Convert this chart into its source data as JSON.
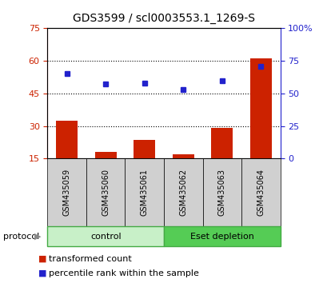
{
  "title": "GDS3599 / scl0003553.1_1269-S",
  "samples": [
    "GSM435059",
    "GSM435060",
    "GSM435061",
    "GSM435062",
    "GSM435063",
    "GSM435064"
  ],
  "red_values": [
    32.5,
    18.0,
    23.5,
    17.0,
    29.0,
    61.0
  ],
  "blue_values": [
    65,
    57,
    58,
    53,
    60,
    71
  ],
  "left_ylim": [
    15,
    75
  ],
  "right_ylim": [
    0,
    100
  ],
  "left_yticks": [
    15,
    30,
    45,
    60,
    75
  ],
  "right_yticks": [
    0,
    25,
    50,
    75,
    100
  ],
  "right_yticklabels": [
    "0",
    "25",
    "50",
    "75",
    "100%"
  ],
  "bar_color": "#cc2200",
  "square_color": "#2222cc",
  "control_label": "control",
  "eset_label": "Eset depletion",
  "protocol_label": "protocol",
  "legend_red": "transformed count",
  "legend_blue": "percentile rank within the sample",
  "bg_gray": "#d0d0d0",
  "bg_control": "#c8f0c8",
  "bg_eset": "#55cc55",
  "dotted_color": "#000000",
  "bar_bottom": 15,
  "title_fontsize": 10,
  "tick_fontsize": 8,
  "sample_fontsize": 7,
  "legend_fontsize": 8,
  "protocol_fontsize": 8,
  "label_fontsize": 7
}
